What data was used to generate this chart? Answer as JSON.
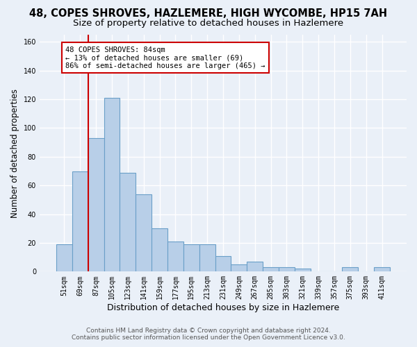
{
  "title": "48, COPES SHROVES, HAZLEMERE, HIGH WYCOMBE, HP15 7AH",
  "subtitle": "Size of property relative to detached houses in Hazlemere",
  "xlabel": "Distribution of detached houses by size in Hazlemere",
  "ylabel": "Number of detached properties",
  "bar_labels": [
    "51sqm",
    "69sqm",
    "87sqm",
    "105sqm",
    "123sqm",
    "141sqm",
    "159sqm",
    "177sqm",
    "195sqm",
    "213sqm",
    "231sqm",
    "249sqm",
    "267sqm",
    "285sqm",
    "303sqm",
    "321sqm",
    "339sqm",
    "357sqm",
    "375sqm",
    "393sqm",
    "411sqm"
  ],
  "bar_values": [
    19,
    70,
    93,
    121,
    69,
    54,
    30,
    21,
    19,
    19,
    11,
    5,
    7,
    3,
    3,
    2,
    0,
    0,
    3,
    0,
    3
  ],
  "bar_color": "#b8cfe8",
  "bar_edge_color": "#6a9fc8",
  "line_color": "#cc0000",
  "property_line_x": 1.5,
  "annotation_text": "48 COPES SHROVES: 84sqm\n← 13% of detached houses are smaller (69)\n86% of semi-detached houses are larger (465) →",
  "annotation_box_color": "#ffffff",
  "annotation_box_edge_color": "#cc0000",
  "ylim": [
    0,
    165
  ],
  "yticks": [
    0,
    20,
    40,
    60,
    80,
    100,
    120,
    140,
    160
  ],
  "bg_color": "#eaf0f8",
  "plot_bg_color": "#eaf0f8",
  "grid_color": "#ffffff",
  "title_fontsize": 10.5,
  "subtitle_fontsize": 9.5,
  "ylabel_fontsize": 8.5,
  "xlabel_fontsize": 9,
  "tick_fontsize": 7,
  "annot_fontsize": 7.5,
  "footer_fontsize": 6.5,
  "footer_line1": "Contains HM Land Registry data © Crown copyright and database right 2024.",
  "footer_line2": "Contains public sector information licensed under the Open Government Licence v3.0."
}
